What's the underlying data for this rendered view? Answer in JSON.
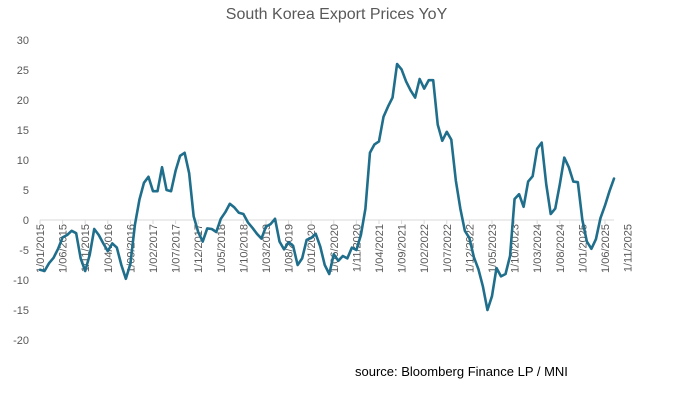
{
  "chart_data": {
    "type": "line",
    "title": "South Korea Export Prices YoY",
    "source": "source:  Bloomberg Finance LP / MNI",
    "xlabel": "",
    "ylabel": "",
    "ylim": [
      -20,
      30
    ],
    "y_ticks": [
      "30",
      "25",
      "20",
      "15",
      "10",
      "5",
      "0",
      "-5",
      "-10",
      "-15",
      "-20"
    ],
    "x_tick_labels": [
      "1/01/2015",
      "1/06/2015",
      "1/11/2015",
      "1/04/2016",
      "1/09/2016",
      "1/02/2017",
      "1/07/2017",
      "1/12/2017",
      "1/05/2018",
      "1/10/2018",
      "1/03/2019",
      "1/08/2019",
      "1/01/2020",
      "1/06/2020",
      "1/11/2020",
      "1/04/2021",
      "1/09/2021",
      "1/02/2022",
      "1/07/2022",
      "1/12/2022",
      "1/05/2023",
      "1/10/2023",
      "1/03/2024",
      "1/08/2024",
      "1/01/2025",
      "1/06/2025",
      "1/11/2025"
    ],
    "grid": false,
    "legend": "none",
    "color": "#1F6E8C",
    "series": [
      {
        "name": "South Korea Export Prices YoY",
        "x_start": "2015-01",
        "frequency": "monthly",
        "values": [
          -8.3,
          -8.5,
          -7.2,
          -6.3,
          -4.8,
          -2.9,
          -2.5,
          -1.8,
          -2.2,
          -6.4,
          -8.5,
          -5.8,
          -1.5,
          -2.5,
          -3.9,
          -5.2,
          -3.9,
          -4.6,
          -7.5,
          -9.8,
          -7.3,
          -0.8,
          3.4,
          6.2,
          7.2,
          4.8,
          4.8,
          8.8,
          5.0,
          4.8,
          8.2,
          10.7,
          11.2,
          7.8,
          0.6,
          -2.0,
          -3.6,
          -1.4,
          -1.5,
          -2.0,
          0.2,
          1.3,
          2.7,
          2.1,
          1.2,
          1.0,
          -0.4,
          -1.3,
          -2.3,
          -3.1,
          -1.1,
          -0.7,
          0.2,
          -3.6,
          -4.9,
          -3.7,
          -4.3,
          -7.5,
          -6.4,
          -3.3,
          -3.0,
          -2.3,
          -4.4,
          -7.5,
          -9.0,
          -5.7,
          -6.8,
          -6.0,
          -6.4,
          -4.6,
          -5.0,
          -2.5,
          1.9,
          11.2,
          12.6,
          13.1,
          17.2,
          18.9,
          20.4,
          26.0,
          25.1,
          23.1,
          21.6,
          20.4,
          23.5,
          21.9,
          23.3,
          23.3,
          15.9,
          13.2,
          14.7,
          13.4,
          6.6,
          1.9,
          -1.8,
          -3.0,
          -6.2,
          -8.2,
          -11.1,
          -15.0,
          -12.7,
          -8.0,
          -9.4,
          -9.0,
          -6.0,
          3.5,
          4.3,
          2.2,
          6.4,
          7.3,
          11.9,
          12.9,
          6.0,
          1.0,
          1.9,
          5.9,
          10.4,
          8.8,
          6.4,
          6.3,
          0.0,
          -3.6,
          -4.8,
          -3.2,
          0.3,
          2.4,
          4.8,
          6.9
        ]
      }
    ]
  }
}
